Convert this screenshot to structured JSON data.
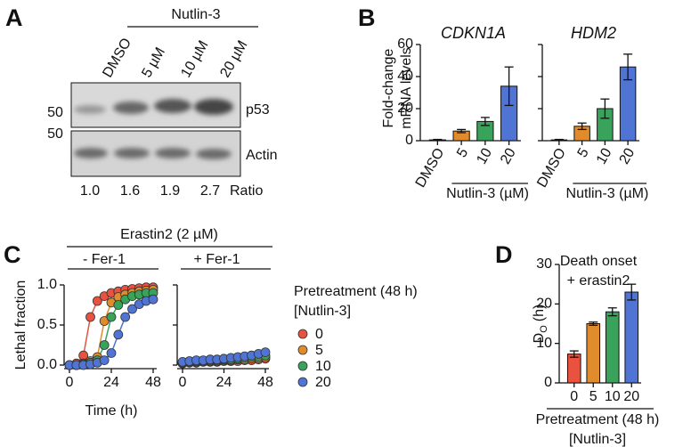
{
  "panel_labels": [
    "A",
    "B",
    "C",
    "D"
  ],
  "blot": {
    "treatment": "Nutlin-3",
    "lanes": [
      "DMSO",
      "5 µM",
      "10 µM",
      "20 µM"
    ],
    "markers": [
      "50",
      "50"
    ],
    "bands": [
      "p53",
      "Actin"
    ],
    "ratios": [
      "1.0",
      "1.6",
      "1.9",
      "2.7"
    ],
    "ratio_label": "Ratio"
  },
  "chart_data": [
    {
      "type": "bar",
      "title": "CDKN1A",
      "ylabel": [
        "Fold-change",
        "mRNA levels"
      ],
      "xlabel": "Nutlin-3 (µM)",
      "categories": [
        "DMSO",
        "5",
        "10",
        "20"
      ],
      "values": [
        0.5,
        6,
        12,
        34
      ],
      "errors": [
        0.3,
        1,
        2.5,
        12
      ],
      "colors": [
        "#e8523f",
        "#e08c2c",
        "#3aa35b",
        "#4f74d4"
      ],
      "ylim": [
        0,
        60
      ],
      "yticks": [
        0,
        20,
        40,
        60
      ],
      "show_ytick_labels": true
    },
    {
      "type": "bar",
      "title": "HDM2",
      "xlabel": "Nutlin-3 (µM)",
      "categories": [
        "DMSO",
        "5",
        "10",
        "20"
      ],
      "values": [
        0.5,
        9,
        20,
        46
      ],
      "errors": [
        0.3,
        2,
        6,
        8
      ],
      "colors": [
        "#e8523f",
        "#e08c2c",
        "#3aa35b",
        "#4f74d4"
      ],
      "ylim": [
        0,
        60
      ],
      "yticks": [
        0,
        20,
        40,
        60
      ],
      "show_ytick_labels": false
    },
    {
      "type": "line",
      "supertitle": "Erastin2 (2 µM)",
      "title": "- Fer-1",
      "ylabel": "Lethal fraction",
      "xlabel": "Time (h)",
      "x": [
        0,
        4,
        8,
        12,
        16,
        20,
        24,
        28,
        32,
        36,
        40,
        44,
        48
      ],
      "xlim": [
        0,
        48
      ],
      "xticks": [
        0,
        24,
        48
      ],
      "ylim": [
        0,
        1
      ],
      "yticks": [
        {
          "value": 0,
          "label": "0.0"
        },
        {
          "value": 0.5,
          "label": "0.5"
        },
        {
          "value": 1,
          "label": "1.0"
        }
      ],
      "show_ytick_labels": true,
      "legend": true,
      "legend_title": [
        "Pretreatment (48 h)",
        "[Nutlin-3]"
      ],
      "series": [
        {
          "name": "0",
          "color": "#e8523f",
          "values": [
            0,
            0.02,
            0.12,
            0.6,
            0.8,
            0.86,
            0.9,
            0.92,
            0.94,
            0.95,
            0.96,
            0.97,
            0.97
          ]
        },
        {
          "name": "5",
          "color": "#e08c2c",
          "values": [
            0,
            0,
            0.02,
            0.05,
            0.1,
            0.55,
            0.78,
            0.85,
            0.88,
            0.9,
            0.92,
            0.93,
            0.94
          ]
        },
        {
          "name": "10",
          "color": "#3aa35b",
          "values": [
            0,
            0,
            0.01,
            0.03,
            0.06,
            0.25,
            0.6,
            0.75,
            0.82,
            0.86,
            0.88,
            0.9,
            0.9
          ]
        },
        {
          "name": "20",
          "color": "#4f74d4",
          "values": [
            0,
            0,
            0,
            0.01,
            0.03,
            0.06,
            0.15,
            0.38,
            0.6,
            0.7,
            0.76,
            0.8,
            0.82
          ]
        }
      ]
    },
    {
      "type": "line",
      "title": "+ Fer-1",
      "x": [
        0,
        4,
        8,
        12,
        16,
        20,
        24,
        28,
        32,
        36,
        40,
        44,
        48
      ],
      "xlim": [
        0,
        48
      ],
      "xticks": [
        0,
        24,
        48
      ],
      "ylim": [
        0,
        1
      ],
      "yticks": [
        {
          "value": 0,
          "label": "0.0"
        },
        {
          "value": 0.5,
          "label": "0.5"
        },
        {
          "value": 1,
          "label": "1.0"
        }
      ],
      "show_ytick_labels": false,
      "legend": false,
      "series": [
        {
          "name": "0",
          "color": "#e8523f",
          "values": [
            0.02,
            0.03,
            0.03,
            0.04,
            0.04,
            0.04,
            0.05,
            0.05,
            0.05,
            0.06,
            0.06,
            0.07,
            0.08
          ]
        },
        {
          "name": "5",
          "color": "#e08c2c",
          "values": [
            0.03,
            0.04,
            0.04,
            0.05,
            0.05,
            0.05,
            0.06,
            0.06,
            0.07,
            0.07,
            0.08,
            0.09,
            0.1
          ]
        },
        {
          "name": "10",
          "color": "#3aa35b",
          "values": [
            0.03,
            0.04,
            0.05,
            0.05,
            0.06,
            0.06,
            0.07,
            0.07,
            0.08,
            0.09,
            0.1,
            0.11,
            0.12
          ]
        },
        {
          "name": "20",
          "color": "#4f74d4",
          "values": [
            0.04,
            0.05,
            0.06,
            0.06,
            0.07,
            0.07,
            0.08,
            0.09,
            0.1,
            0.11,
            0.12,
            0.14,
            0.16
          ]
        }
      ]
    },
    {
      "type": "bar",
      "title": [
        "Death onset",
        "+ erastin2"
      ],
      "ylabel_main": "D",
      "ylabel_sub": "O",
      "ylabel_unit": "(h)",
      "xlabel": [
        "Pretreatment (48 h)",
        "[Nutlin-3]"
      ],
      "categories": [
        "0",
        "5",
        "10",
        "20"
      ],
      "values": [
        7.3,
        15,
        18,
        23
      ],
      "errors": [
        0.8,
        0.4,
        1,
        2
      ],
      "colors": [
        "#e8523f",
        "#e08c2c",
        "#3aa35b",
        "#4f74d4"
      ],
      "ylim": [
        0,
        30
      ],
      "yticks": [
        0,
        10,
        20,
        30
      ],
      "show_ytick_labels": true
    }
  ]
}
